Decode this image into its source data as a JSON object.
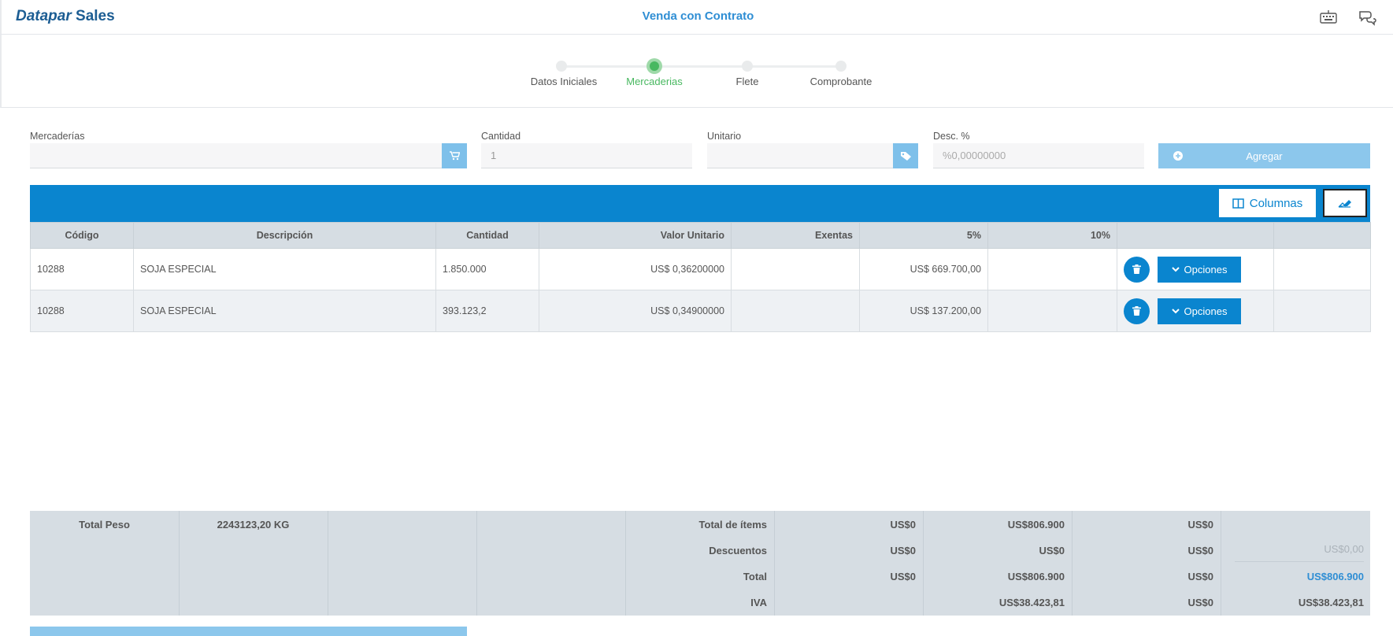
{
  "header": {
    "brand_part1": "Datapar",
    "brand_part2": "Sales",
    "title": "Venda con Contrato",
    "icons": [
      "keyboard-icon",
      "chat-icon"
    ]
  },
  "stepper": {
    "steps": [
      {
        "label": "Datos Iniciales",
        "active": false
      },
      {
        "label": "Mercaderias",
        "active": true
      },
      {
        "label": "Flete",
        "active": false
      },
      {
        "label": "Comprobante",
        "active": false
      }
    ]
  },
  "form": {
    "mercaderias_label": "Mercaderías",
    "mercaderias_value": "",
    "cantidad_label": "Cantidad",
    "cantidad_placeholder": "1",
    "unitario_label": "Unitario",
    "unitario_value": "",
    "desc_label": "Desc. %",
    "desc_placeholder": "%0,00000000",
    "add_label": "Agregar"
  },
  "toolbar": {
    "columns_label": "Columnas"
  },
  "table": {
    "headers": [
      "Código",
      "Descripción",
      "Cantidad",
      "Valor Unitario",
      "Exentas",
      "5%",
      "10%",
      ""
    ],
    "rows": [
      {
        "codigo": "10288",
        "descripcion": "SOJA ESPECIAL",
        "cantidad": "1.850.000",
        "valor_unitario": "US$ 0,36200000",
        "exentas": "",
        "cinco": "US$ 669.700,00",
        "diez": "",
        "options_label": "Opciones"
      },
      {
        "codigo": "10288",
        "descripcion": "SOJA ESPECIAL",
        "cantidad": "393.123,2",
        "valor_unitario": "US$ 0,34900000",
        "exentas": "",
        "cinco": "US$ 137.200,00",
        "diez": "",
        "options_label": "Opciones"
      }
    ]
  },
  "summary": {
    "total_peso_label": "Total Peso",
    "total_peso_value": "2243123,20 KG",
    "rows": [
      {
        "label": "Total de ítems",
        "c1": "US$0",
        "c2": "US$806.900",
        "c3": "US$0",
        "c4": ""
      },
      {
        "label": "Descuentos",
        "c1": "US$0",
        "c2": "US$0",
        "c3": "US$0",
        "c4": "US$0,00"
      },
      {
        "label": "Total",
        "c1": "US$0",
        "c2": "US$806.900",
        "c3": "US$0",
        "c4": "US$806.900"
      },
      {
        "label": "IVA",
        "c1": "",
        "c2": "US$38.423,81",
        "c3": "US$0",
        "c4": "US$38.423,81"
      }
    ]
  },
  "colors": {
    "primary": "#0a85cf",
    "success": "#48b860",
    "light_primary": "#8cc7ec"
  }
}
